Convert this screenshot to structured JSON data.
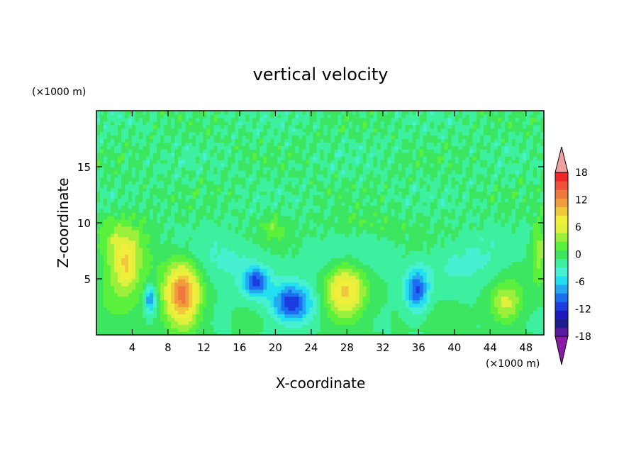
{
  "chart_data": {
    "type": "heatmap",
    "title": "vertical velocity",
    "xlabel": "X-coordinate",
    "ylabel": "Z-coordinate",
    "x_unit": "(×1000 m)",
    "y_unit": "(×1000 m)",
    "xlim": [
      0,
      50
    ],
    "ylim": [
      0,
      20
    ],
    "x_ticks": [
      4,
      8,
      12,
      16,
      20,
      24,
      28,
      32,
      36,
      40,
      44,
      48
    ],
    "y_ticks": [
      5,
      10,
      15
    ],
    "colorbar": {
      "min": -20,
      "max": 20,
      "step": 2,
      "tick_values": [
        18,
        12,
        6,
        0,
        -6,
        -12,
        -18
      ],
      "colors": [
        "#8a1aa6",
        "#5a1aa0",
        "#1c1c8c",
        "#1c1cbe",
        "#1c3ce0",
        "#1c6ef0",
        "#24a8f0",
        "#22e0f0",
        "#46f0d0",
        "#3cf0a0",
        "#3ce660",
        "#5af03c",
        "#9cf03c",
        "#e0f03c",
        "#f0f03c",
        "#f0c83c",
        "#f09c3c",
        "#f0783c",
        "#f0503c",
        "#f02828",
        "#f0a0a0"
      ]
    },
    "background_w": "near 0 (green)",
    "features": [
      {
        "name": "",
        "x": 2.8,
        "z": 6.5,
        "sx": 1.9,
        "sz": 2.4,
        "value": 9
      },
      {
        "name": "",
        "x": 3.4,
        "z": 6.2,
        "sx": 0.6,
        "sz": 1.2,
        "value": 4
      },
      {
        "name": "",
        "x": 9.6,
        "z": 3.5,
        "sx": 1.4,
        "sz": 2.0,
        "value": 15
      },
      {
        "name": "",
        "x": 6.0,
        "z": 3.2,
        "sx": 0.45,
        "sz": 0.9,
        "value": -9
      },
      {
        "name": "",
        "x": 17.8,
        "z": 4.7,
        "sx": 1.0,
        "sz": 0.9,
        "value": -10
      },
      {
        "name": "",
        "x": 21.8,
        "z": 2.8,
        "sx": 1.6,
        "sz": 1.2,
        "value": -12
      },
      {
        "name": "",
        "x": 27.8,
        "z": 3.9,
        "sx": 1.6,
        "sz": 1.8,
        "value": 11
      },
      {
        "name": "",
        "x": 35.8,
        "z": 4.0,
        "sx": 0.9,
        "sz": 1.3,
        "value": -10
      },
      {
        "name": "",
        "x": 45.8,
        "z": 2.8,
        "sx": 1.3,
        "sz": 1.3,
        "value": 7
      },
      {
        "name": "",
        "x": 49.5,
        "z": 7.5,
        "sx": 0.6,
        "sz": 2.0,
        "value": 5
      },
      {
        "name": "",
        "x": 30.0,
        "z": 9.8,
        "sx": 3.0,
        "sz": 0.8,
        "value": 2
      },
      {
        "name": "",
        "x": 19.8,
        "z": 9.6,
        "sx": 1.0,
        "sz": 0.8,
        "value": 3
      }
    ]
  }
}
